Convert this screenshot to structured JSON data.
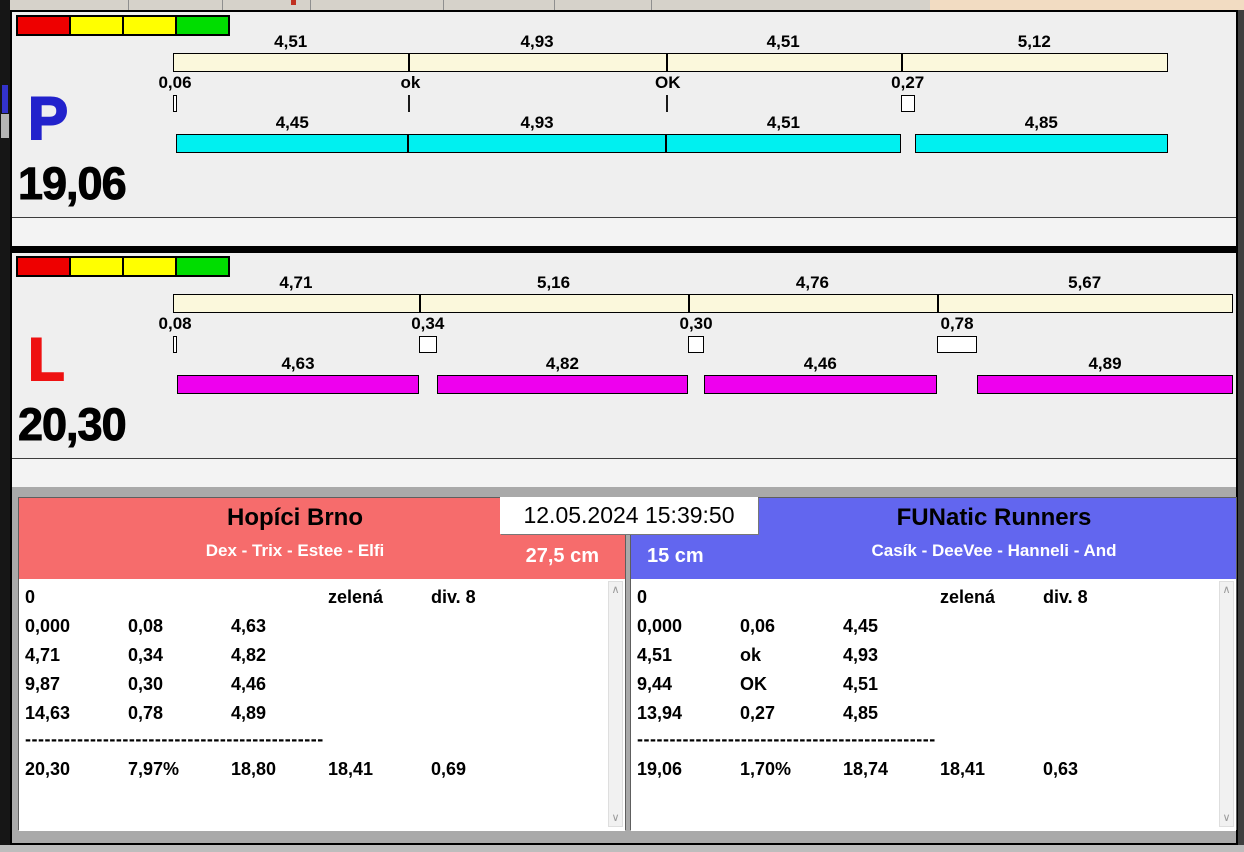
{
  "timestamp": "12.05.2024 15:39:50",
  "icons": {
    "scroll_up": "∧",
    "scroll_down": "∨"
  },
  "lanes": [
    {
      "letter": "P",
      "letter_color": "#2222cc",
      "run_color": "#00f0f0",
      "lights": [
        "#ee0000",
        "#ffff00",
        "#ffff00",
        "#00dd00"
      ],
      "total_label": "19,06",
      "total_seconds": 19.06,
      "splits_seconds": [
        0,
        4.51,
        9.44,
        13.94
      ],
      "legs": [
        {
          "split_time": "4,51",
          "gap": "0,06",
          "gap_seconds": 0.06,
          "gap_style": "box",
          "run_time": "4,45",
          "run_seconds": 4.45
        },
        {
          "split_time": "4,93",
          "gap": "ok",
          "gap_seconds": 0,
          "gap_style": "tick",
          "run_time": "4,93",
          "run_seconds": 4.93
        },
        {
          "split_time": "4,51",
          "gap": "OK",
          "gap_seconds": 0,
          "gap_style": "tick",
          "run_time": "4,51",
          "run_seconds": 4.51
        },
        {
          "split_time": "5,12",
          "gap": "0,27",
          "gap_seconds": 0.27,
          "gap_style": "box",
          "run_time": "4,85",
          "run_seconds": 4.85
        }
      ]
    },
    {
      "letter": "L",
      "letter_color": "#ee1111",
      "run_color": "#ee00ee",
      "lights": [
        "#ee0000",
        "#ffff00",
        "#ffff00",
        "#00dd00"
      ],
      "total_label": "20,30",
      "total_seconds": 20.3,
      "splits_seconds": [
        0,
        4.71,
        9.87,
        14.63
      ],
      "legs": [
        {
          "split_time": "4,71",
          "gap": "0,08",
          "gap_seconds": 0.08,
          "gap_style": "box",
          "run_time": "4,63",
          "run_seconds": 4.63
        },
        {
          "split_time": "5,16",
          "gap": "0,34",
          "gap_seconds": 0.34,
          "gap_style": "box",
          "run_time": "4,82",
          "run_seconds": 4.82
        },
        {
          "split_time": "4,76",
          "gap": "0,30",
          "gap_seconds": 0.3,
          "gap_style": "box",
          "run_time": "4,46",
          "run_seconds": 4.46
        },
        {
          "split_time": "5,67",
          "gap": "0,78",
          "gap_seconds": 0.78,
          "gap_style": "box",
          "run_time": "4,89",
          "run_seconds": 4.89
        }
      ]
    }
  ],
  "teams": [
    {
      "name": "Hopíci Brno",
      "members": "Dex - Trix - Estee - Elfi",
      "jump_height": "27,5 cm",
      "header_color": "#f66c6c",
      "table": {
        "rows": [
          [
            "0",
            "",
            "",
            "zelená",
            "div. 8"
          ],
          [
            "0,000",
            "0,08",
            "4,63",
            "",
            ""
          ],
          [
            "4,71",
            "0,34",
            "4,82",
            "",
            ""
          ],
          [
            "9,87",
            "0,30",
            "4,46",
            "",
            ""
          ],
          [
            "14,63",
            "0,78",
            "4,89",
            "",
            ""
          ]
        ],
        "separator": "----------------------------------------------",
        "summary": [
          "20,30",
          "7,97%",
          "18,80",
          "18,41",
          "0,69"
        ]
      }
    },
    {
      "name": "FUNatic Runners",
      "members": "Casík - DeeVee - Hanneli - And",
      "jump_height": "15 cm",
      "header_color": "#6266ef",
      "table": {
        "rows": [
          [
            "0",
            "",
            "",
            "zelená",
            "div. 8"
          ],
          [
            "0,000",
            "0,06",
            "4,45",
            "",
            ""
          ],
          [
            "4,51",
            "ok",
            "4,93",
            "",
            ""
          ],
          [
            "9,44",
            "OK",
            "4,51",
            "",
            ""
          ],
          [
            "13,94",
            "0,27",
            "4,85",
            "",
            ""
          ]
        ],
        "separator": "----------------------------------------------",
        "summary": [
          "19,06",
          "1,70%",
          "18,74",
          "18,41",
          "0,63"
        ]
      }
    }
  ]
}
